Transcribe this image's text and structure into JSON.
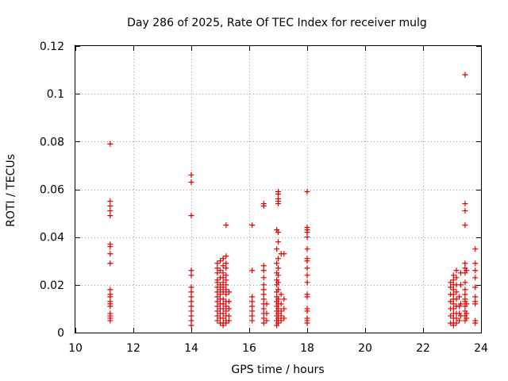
{
  "chart_data": {
    "type": "scatter",
    "title": "Day 286 of 2025, Rate Of TEC Index for receiver mulg",
    "xlabel": "GPS time / hours",
    "ylabel": "ROTI / TECUs",
    "xlim": [
      10,
      24
    ],
    "ylim": [
      0,
      0.12
    ],
    "xticks": [
      10,
      12,
      14,
      16,
      18,
      20,
      22,
      24
    ],
    "xtick_labels": [
      "10",
      "12",
      "14",
      "16",
      "18",
      "20",
      "22",
      "24"
    ],
    "yticks": [
      0,
      0.02,
      0.04,
      0.06,
      0.08,
      0.1,
      0.12
    ],
    "ytick_labels": [
      "0",
      "0.02",
      "0.04",
      "0.06",
      "0.08",
      "0.1",
      "0.12"
    ],
    "grid": true,
    "marker": "+",
    "color": "#e00000",
    "series": [
      {
        "points": [
          [
            11.2,
            0.079
          ],
          [
            11.2,
            0.055
          ],
          [
            11.2,
            0.053
          ],
          [
            11.2,
            0.051
          ],
          [
            11.2,
            0.049
          ],
          [
            11.2,
            0.037
          ],
          [
            11.2,
            0.036
          ],
          [
            11.2,
            0.033
          ],
          [
            11.2,
            0.029
          ],
          [
            11.2,
            0.018
          ],
          [
            11.2,
            0.016
          ],
          [
            11.2,
            0.015
          ],
          [
            11.2,
            0.013
          ],
          [
            11.2,
            0.012
          ],
          [
            11.2,
            0.011
          ],
          [
            11.2,
            0.008
          ],
          [
            11.2,
            0.007
          ],
          [
            11.2,
            0.006
          ],
          [
            11.2,
            0.005
          ],
          [
            14.0,
            0.066
          ],
          [
            14.0,
            0.063
          ],
          [
            14.0,
            0.049
          ],
          [
            14.0,
            0.026
          ],
          [
            14.0,
            0.024
          ],
          [
            14.0,
            0.019
          ],
          [
            14.0,
            0.017
          ],
          [
            14.0,
            0.015
          ],
          [
            14.0,
            0.013
          ],
          [
            14.0,
            0.011
          ],
          [
            14.0,
            0.009
          ],
          [
            14.0,
            0.007
          ],
          [
            14.0,
            0.005
          ],
          [
            14.0,
            0.003
          ],
          [
            14.9,
            0.029
          ],
          [
            14.9,
            0.027
          ],
          [
            14.9,
            0.025
          ],
          [
            14.9,
            0.022
          ],
          [
            14.9,
            0.021
          ],
          [
            14.9,
            0.019
          ],
          [
            14.9,
            0.017
          ],
          [
            14.9,
            0.015
          ],
          [
            14.9,
            0.013
          ],
          [
            14.9,
            0.011
          ],
          [
            14.9,
            0.009
          ],
          [
            14.9,
            0.007
          ],
          [
            14.9,
            0.005
          ],
          [
            15.0,
            0.03
          ],
          [
            15.0,
            0.026
          ],
          [
            15.0,
            0.023
          ],
          [
            15.0,
            0.02
          ],
          [
            15.0,
            0.018
          ],
          [
            15.0,
            0.016
          ],
          [
            15.0,
            0.014
          ],
          [
            15.0,
            0.012
          ],
          [
            15.0,
            0.01
          ],
          [
            15.0,
            0.008
          ],
          [
            15.0,
            0.006
          ],
          [
            15.0,
            0.004
          ],
          [
            15.1,
            0.031
          ],
          [
            15.1,
            0.028
          ],
          [
            15.1,
            0.025
          ],
          [
            15.1,
            0.023
          ],
          [
            15.1,
            0.021
          ],
          [
            15.1,
            0.019
          ],
          [
            15.1,
            0.017
          ],
          [
            15.1,
            0.014
          ],
          [
            15.1,
            0.012
          ],
          [
            15.1,
            0.01
          ],
          [
            15.1,
            0.008
          ],
          [
            15.1,
            0.006
          ],
          [
            15.1,
            0.004
          ],
          [
            15.1,
            0.003
          ],
          [
            15.2,
            0.045
          ],
          [
            15.2,
            0.032
          ],
          [
            15.2,
            0.029
          ],
          [
            15.2,
            0.027
          ],
          [
            15.2,
            0.024
          ],
          [
            15.2,
            0.022
          ],
          [
            15.2,
            0.02
          ],
          [
            15.2,
            0.018
          ],
          [
            15.2,
            0.016
          ],
          [
            15.2,
            0.013
          ],
          [
            15.2,
            0.011
          ],
          [
            15.2,
            0.009
          ],
          [
            15.2,
            0.007
          ],
          [
            15.2,
            0.005
          ],
          [
            15.2,
            0.004
          ],
          [
            15.3,
            0.017
          ],
          [
            15.3,
            0.013
          ],
          [
            15.3,
            0.01
          ],
          [
            15.3,
            0.007
          ],
          [
            15.3,
            0.005
          ],
          [
            16.1,
            0.045
          ],
          [
            16.1,
            0.026
          ],
          [
            16.1,
            0.015
          ],
          [
            16.1,
            0.013
          ],
          [
            16.1,
            0.011
          ],
          [
            16.1,
            0.009
          ],
          [
            16.1,
            0.007
          ],
          [
            16.1,
            0.005
          ],
          [
            16.5,
            0.054
          ],
          [
            16.5,
            0.053
          ],
          [
            16.5,
            0.028
          ],
          [
            16.5,
            0.026
          ],
          [
            16.5,
            0.023
          ],
          [
            16.5,
            0.02
          ],
          [
            16.5,
            0.018
          ],
          [
            16.5,
            0.016
          ],
          [
            16.5,
            0.014
          ],
          [
            16.5,
            0.012
          ],
          [
            16.5,
            0.01
          ],
          [
            16.5,
            0.008
          ],
          [
            16.5,
            0.006
          ],
          [
            16.5,
            0.004
          ],
          [
            16.6,
            0.012
          ],
          [
            16.6,
            0.008
          ],
          [
            16.6,
            0.005
          ],
          [
            16.95,
            0.043
          ],
          [
            16.95,
            0.035
          ],
          [
            16.95,
            0.029
          ],
          [
            16.95,
            0.025
          ],
          [
            16.95,
            0.022
          ],
          [
            16.95,
            0.02
          ],
          [
            16.95,
            0.017
          ],
          [
            16.95,
            0.015
          ],
          [
            16.95,
            0.013
          ],
          [
            16.95,
            0.011
          ],
          [
            16.95,
            0.009
          ],
          [
            16.95,
            0.007
          ],
          [
            16.95,
            0.005
          ],
          [
            16.95,
            0.003
          ],
          [
            17.0,
            0.059
          ],
          [
            17.0,
            0.058
          ],
          [
            17.0,
            0.056
          ],
          [
            17.0,
            0.055
          ],
          [
            17.0,
            0.054
          ],
          [
            17.0,
            0.042
          ],
          [
            17.0,
            0.038
          ],
          [
            17.0,
            0.031
          ],
          [
            17.0,
            0.027
          ],
          [
            17.0,
            0.024
          ],
          [
            17.0,
            0.021
          ],
          [
            17.0,
            0.018
          ],
          [
            17.0,
            0.014
          ],
          [
            17.0,
            0.012
          ],
          [
            17.0,
            0.01
          ],
          [
            17.0,
            0.008
          ],
          [
            17.0,
            0.006
          ],
          [
            17.0,
            0.004
          ],
          [
            17.1,
            0.033
          ],
          [
            17.1,
            0.016
          ],
          [
            17.1,
            0.012
          ],
          [
            17.1,
            0.009
          ],
          [
            17.1,
            0.007
          ],
          [
            17.1,
            0.005
          ],
          [
            17.2,
            0.033
          ],
          [
            17.2,
            0.014
          ],
          [
            17.2,
            0.01
          ],
          [
            17.2,
            0.006
          ],
          [
            18.0,
            0.059
          ],
          [
            18.0,
            0.044
          ],
          [
            18.0,
            0.043
          ],
          [
            18.0,
            0.042
          ],
          [
            18.0,
            0.04
          ],
          [
            18.0,
            0.035
          ],
          [
            18.0,
            0.031
          ],
          [
            18.0,
            0.03
          ],
          [
            18.0,
            0.027
          ],
          [
            18.0,
            0.024
          ],
          [
            18.0,
            0.021
          ],
          [
            18.0,
            0.016
          ],
          [
            18.0,
            0.015
          ],
          [
            18.0,
            0.01
          ],
          [
            18.0,
            0.009
          ],
          [
            18.0,
            0.006
          ],
          [
            18.0,
            0.005
          ],
          [
            18.0,
            0.004
          ],
          [
            22.95,
            0.021
          ],
          [
            22.95,
            0.019
          ],
          [
            22.95,
            0.016
          ],
          [
            22.95,
            0.013
          ],
          [
            22.95,
            0.01
          ],
          [
            22.95,
            0.007
          ],
          [
            22.95,
            0.004
          ],
          [
            23.05,
            0.024
          ],
          [
            23.05,
            0.022
          ],
          [
            23.05,
            0.02
          ],
          [
            23.05,
            0.018
          ],
          [
            23.05,
            0.016
          ],
          [
            23.05,
            0.014
          ],
          [
            23.05,
            0.012
          ],
          [
            23.05,
            0.01
          ],
          [
            23.05,
            0.008
          ],
          [
            23.05,
            0.006
          ],
          [
            23.05,
            0.004
          ],
          [
            23.05,
            0.003
          ],
          [
            23.15,
            0.026
          ],
          [
            23.15,
            0.023
          ],
          [
            23.15,
            0.02
          ],
          [
            23.15,
            0.017
          ],
          [
            23.15,
            0.014
          ],
          [
            23.15,
            0.011
          ],
          [
            23.15,
            0.008
          ],
          [
            23.15,
            0.006
          ],
          [
            23.15,
            0.004
          ],
          [
            23.25,
            0.015
          ],
          [
            23.25,
            0.011
          ],
          [
            23.25,
            0.008
          ],
          [
            23.25,
            0.005
          ],
          [
            23.3,
            0.025
          ],
          [
            23.3,
            0.02
          ],
          [
            23.3,
            0.012
          ],
          [
            23.3,
            0.007
          ],
          [
            23.45,
            0.108
          ],
          [
            23.45,
            0.054
          ],
          [
            23.45,
            0.051
          ],
          [
            23.45,
            0.045
          ],
          [
            23.45,
            0.029
          ],
          [
            23.45,
            0.027
          ],
          [
            23.45,
            0.025
          ],
          [
            23.45,
            0.021
          ],
          [
            23.45,
            0.018
          ],
          [
            23.45,
            0.016
          ],
          [
            23.45,
            0.014
          ],
          [
            23.45,
            0.013
          ],
          [
            23.45,
            0.011
          ],
          [
            23.45,
            0.009
          ],
          [
            23.45,
            0.007
          ],
          [
            23.45,
            0.005
          ],
          [
            23.5,
            0.026
          ],
          [
            23.5,
            0.012
          ],
          [
            23.5,
            0.008
          ],
          [
            23.5,
            0.006
          ],
          [
            23.8,
            0.035
          ],
          [
            23.8,
            0.029
          ],
          [
            23.8,
            0.026
          ],
          [
            23.8,
            0.023
          ],
          [
            23.8,
            0.019
          ],
          [
            23.8,
            0.015
          ],
          [
            23.8,
            0.013
          ],
          [
            23.8,
            0.012
          ],
          [
            23.8,
            0.005
          ],
          [
            23.8,
            0.004
          ]
        ]
      }
    ]
  }
}
